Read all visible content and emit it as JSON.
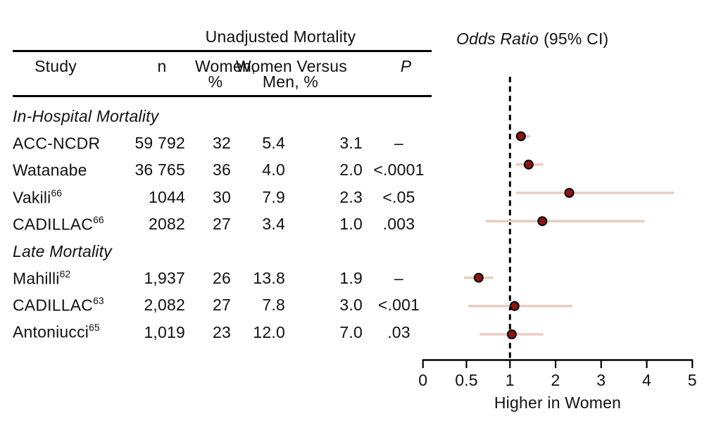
{
  "table": {
    "spanner": "Unadjusted Mortality",
    "headers": {
      "study": "Study",
      "n": "n",
      "women_pct_line1": "Women,",
      "women_pct_line2": "%",
      "women_vs_men_line1": "Women Versus",
      "women_vs_men_line2": "Men, %",
      "p": "P"
    },
    "rows": [
      {
        "type": "section",
        "label": "In-Hospital Mortality"
      },
      {
        "type": "data",
        "study": "ACC-NCDR",
        "sup": "",
        "n": "59 792",
        "women_pct": "32",
        "women_mortality": "5.4",
        "men_mortality": "3.1",
        "p": "–"
      },
      {
        "type": "data",
        "study": "Watanabe",
        "sup": "",
        "n": "36 765",
        "women_pct": "36",
        "women_mortality": "4.0",
        "men_mortality": "2.0",
        "p": "<.0001"
      },
      {
        "type": "data",
        "study": "Vakili",
        "sup": "66",
        "n": "1044",
        "women_pct": "30",
        "women_mortality": "7.9",
        "men_mortality": "2.3",
        "p": "<.05"
      },
      {
        "type": "data",
        "study": "CADILLAC",
        "sup": "66",
        "n": "2082",
        "women_pct": "27",
        "women_mortality": "3.4",
        "men_mortality": "1.0",
        "p": ".003"
      },
      {
        "type": "section",
        "label": "Late Mortality"
      },
      {
        "type": "data",
        "study": "Mahilli",
        "sup": "62",
        "n": "1,937",
        "women_pct": "26",
        "women_mortality": "13.8",
        "men_mortality": "1.9",
        "p": "–"
      },
      {
        "type": "data",
        "study": "CADILLAC",
        "sup": "63",
        "n": "2,082",
        "women_pct": "27",
        "women_mortality": "7.8",
        "men_mortality": "3.0",
        "p": "<.001"
      },
      {
        "type": "data",
        "study": "Antoniucci",
        "sup": "65",
        "n": "1,019",
        "women_pct": "23",
        "women_mortality": "12.0",
        "men_mortality": "7.0",
        "p": ".03"
      }
    ]
  },
  "plot": {
    "title_italic": "Odds Ratio",
    "title_regular": "(95% CI)"
  },
  "chart_data": {
    "type": "scatter",
    "subtype": "forest-plot",
    "title": "Odds Ratio (95% CI)",
    "xlabel": "Higher in Women",
    "x_ticks": [
      0,
      0.5,
      1,
      2,
      3,
      4,
      5
    ],
    "x_scale_note": "all seven ticks evenly spaced: linear 0-1 on left segment, linear 1-5 on right segment",
    "reference_line_x": 1,
    "grid": false,
    "points": [
      {
        "study": "ACC-NCDR",
        "group": "In-Hospital Mortality",
        "or": 1.24,
        "ci_low": 1.12,
        "ci_high": 1.44
      },
      {
        "study": "Watanabe",
        "group": "In-Hospital Mortality",
        "or": 1.41,
        "ci_low": 1.13,
        "ci_high": 1.73
      },
      {
        "study": "Vakili",
        "group": "In-Hospital Mortality",
        "or": 2.3,
        "ci_low": 1.13,
        "ci_high": 4.6
      },
      {
        "study": "CADILLAC",
        "group": "In-Hospital Mortality",
        "or": 1.71,
        "ci_low": 0.72,
        "ci_high": 3.95
      },
      {
        "study": "Mahilli",
        "group": "Late Mortality",
        "or": 0.64,
        "ci_low": 0.47,
        "ci_high": 0.81
      },
      {
        "study": "CADILLAC",
        "group": "Late Mortality",
        "or": 1.1,
        "ci_low": 0.52,
        "ci_high": 2.37
      },
      {
        "study": "Antoniucci",
        "group": "Late Mortality",
        "or": 1.04,
        "ci_low": 0.65,
        "ci_high": 1.73
      }
    ],
    "colors": {
      "marker_fill": "#8f1511",
      "marker_stroke": "#000000",
      "ci_line": "#e9cdc0",
      "reference_line": "#000000",
      "axis": "#000000"
    }
  }
}
